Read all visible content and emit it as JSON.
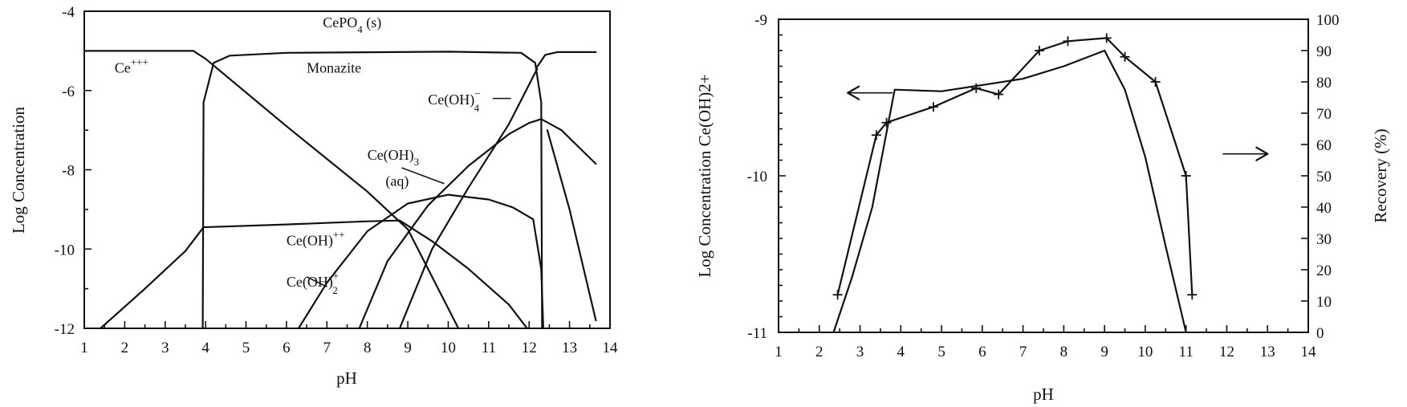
{
  "chart_data": [
    {
      "type": "line",
      "xlabel": "pH",
      "ylabel": "Log Concentration",
      "xlim": [
        1,
        14
      ],
      "ylim": [
        -12,
        -4
      ],
      "x_ticks": [
        "1",
        "2",
        "3",
        "4",
        "5",
        "6",
        "7",
        "8",
        "9",
        "10",
        "11",
        "12",
        "13",
        "14"
      ],
      "y_ticks": [
        "-12",
        "-10",
        "-8",
        "-6",
        "-4"
      ],
      "annotations": [
        {
          "base": "CePO",
          "sub": "4",
          "sup": "",
          "after": " (s)",
          "x": 6.9,
          "y": -4.4
        },
        {
          "base": "Monazite",
          "sub": "",
          "sup": "",
          "after": "",
          "x": 6.5,
          "y": -5.55
        },
        {
          "base": "Ce",
          "sub": "",
          "sup": "+++",
          "after": "",
          "x": 1.75,
          "y": -5.55
        },
        {
          "base": "Ce(OH)",
          "sub": "4",
          "sup": "−",
          "after": "",
          "x": 9.5,
          "y": -6.35
        },
        {
          "base": "Ce(OH)",
          "sub": "3",
          "sup": "",
          "after": "",
          "x": 8.0,
          "y": -7.75
        },
        {
          "base": "(aq)",
          "sub": "",
          "sup": "",
          "after": "",
          "x": 8.45,
          "y": -8.4
        },
        {
          "base": "Ce(OH)",
          "sub": "",
          "sup": "++",
          "after": "",
          "x": 6.0,
          "y": -9.9
        },
        {
          "base": "Ce(OH)",
          "sub": "2",
          "sup": "+",
          "after": "",
          "x": 6.0,
          "y": -10.95
        }
      ],
      "series": [
        {
          "values": [
            [
              1,
              -5.0
            ],
            [
              3.7,
              -5.0
            ],
            [
              4.0,
              -5.2
            ],
            [
              6.0,
              -6.9
            ],
            [
              8.0,
              -8.55
            ],
            [
              9.0,
              -9.5
            ],
            [
              10.0,
              -11.5
            ],
            [
              10.25,
              -12
            ]
          ]
        },
        {
          "values": [
            [
              3.93,
              -12
            ],
            [
              3.95,
              -6.3
            ],
            [
              4.2,
              -5.3
            ],
            [
              4.6,
              -5.12
            ],
            [
              6.0,
              -5.05
            ],
            [
              10.0,
              -5.02
            ],
            [
              11.8,
              -5.05
            ],
            [
              12.15,
              -5.3
            ],
            [
              12.3,
              -6.3
            ],
            [
              12.32,
              -12
            ]
          ]
        },
        {
          "values": [
            [
              12.2,
              -5.4
            ],
            [
              12.4,
              -5.1
            ],
            [
              12.7,
              -5.03
            ],
            [
              13.65,
              -5.03
            ]
          ]
        },
        {
          "values": [
            [
              1.4,
              -12
            ],
            [
              2.5,
              -11.0
            ],
            [
              3.5,
              -10.05
            ],
            [
              3.95,
              -9.45
            ],
            [
              6.0,
              -9.38
            ],
            [
              8.0,
              -9.3
            ],
            [
              8.8,
              -9.28
            ],
            [
              9.6,
              -9.8
            ],
            [
              10.5,
              -10.5
            ],
            [
              11.5,
              -11.4
            ],
            [
              11.95,
              -12
            ]
          ]
        },
        {
          "values": [
            [
              6.3,
              -12
            ],
            [
              7.0,
              -10.85
            ],
            [
              8.0,
              -9.55
            ],
            [
              9.0,
              -8.85
            ],
            [
              10.0,
              -8.63
            ],
            [
              11.0,
              -8.75
            ],
            [
              11.6,
              -8.95
            ],
            [
              12.1,
              -9.25
            ],
            [
              12.3,
              -10.5
            ],
            [
              12.35,
              -12
            ]
          ]
        },
        {
          "values": [
            [
              7.8,
              -12
            ],
            [
              8.5,
              -10.3
            ],
            [
              9.5,
              -8.9
            ],
            [
              10.5,
              -7.9
            ],
            [
              11.5,
              -7.1
            ],
            [
              12.0,
              -6.82
            ],
            [
              12.3,
              -6.72
            ],
            [
              12.8,
              -7.0
            ],
            [
              13.65,
              -7.85
            ]
          ]
        },
        {
          "values": [
            [
              8.8,
              -12
            ],
            [
              9.6,
              -10.0
            ],
            [
              10.5,
              -8.45
            ],
            [
              11.5,
              -6.85
            ],
            [
              12.2,
              -5.45
            ]
          ]
        },
        {
          "values": [
            [
              12.45,
              -7.0
            ],
            [
              13.0,
              -9.0
            ],
            [
              13.65,
              -11.8
            ]
          ]
        }
      ]
    },
    {
      "type": "line",
      "xlabel": "pH",
      "ylabel": "Log Concentration Ce(OH)2+",
      "y2label": "Recovery  (%)",
      "xlim": [
        1,
        14
      ],
      "ylim": [
        -11,
        -9
      ],
      "y2lim": [
        0,
        100
      ],
      "x_ticks": [
        "1",
        "2",
        "3",
        "4",
        "5",
        "6",
        "7",
        "8",
        "9",
        "10",
        "11",
        "12",
        "13",
        "14"
      ],
      "y_ticks": [
        "-11",
        "-10",
        "-9"
      ],
      "y2_ticks": [
        "0",
        "10",
        "20",
        "30",
        "40",
        "50",
        "60",
        "70",
        "80",
        "90",
        "100"
      ],
      "series": [
        {
          "axis": "left",
          "values": [
            [
              2.35,
              -11.0
            ],
            [
              2.8,
              -10.65
            ],
            [
              3.3,
              -10.2
            ],
            [
              3.85,
              -9.45
            ],
            [
              5.0,
              -9.46
            ],
            [
              6.0,
              -9.42
            ],
            [
              7.0,
              -9.38
            ],
            [
              8.0,
              -9.3
            ],
            [
              9.0,
              -9.2
            ],
            [
              9.5,
              -9.45
            ],
            [
              10.0,
              -9.88
            ],
            [
              10.5,
              -10.45
            ],
            [
              11.0,
              -11.0
            ]
          ]
        },
        {
          "axis": "right",
          "markers": true,
          "values": [
            [
              2.45,
              12
            ],
            [
              3.4,
              63
            ],
            [
              3.65,
              67
            ],
            [
              4.8,
              72
            ],
            [
              5.85,
              78
            ],
            [
              6.4,
              76
            ],
            [
              7.4,
              90
            ],
            [
              8.1,
              93
            ],
            [
              9.05,
              94
            ],
            [
              9.5,
              88
            ],
            [
              10.25,
              80
            ],
            [
              11.0,
              50
            ],
            [
              11.15,
              12
            ]
          ]
        }
      ],
      "arrows": [
        {
          "points_to": "left",
          "x": 3.8,
          "y": -9.47
        },
        {
          "points_to": "right",
          "x": 11.9,
          "y": -9.86
        }
      ]
    }
  ]
}
